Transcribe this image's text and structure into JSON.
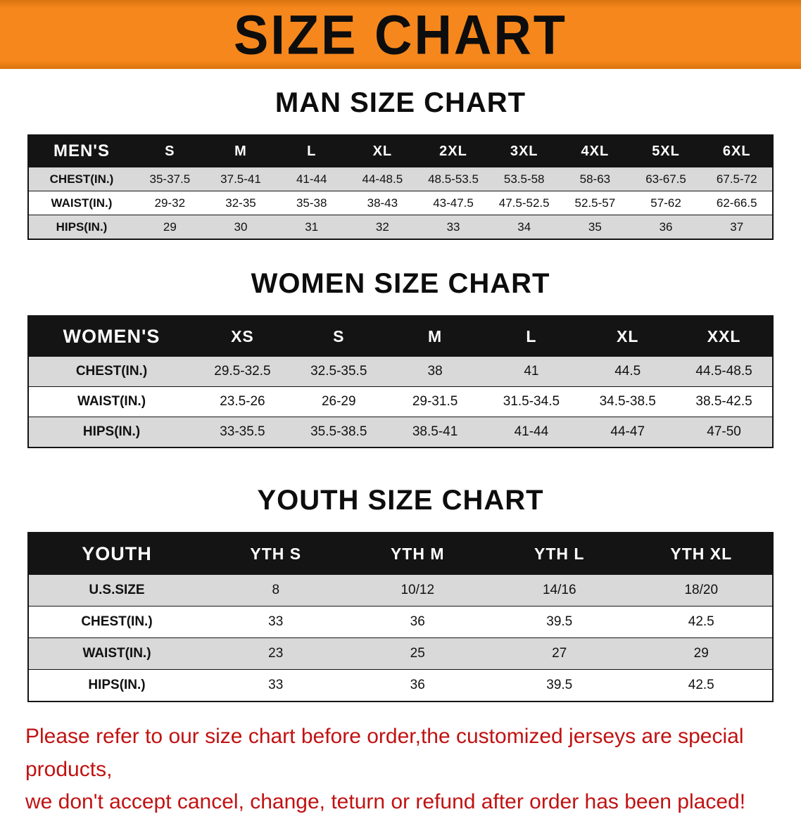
{
  "banner": {
    "title": "SIZE CHART"
  },
  "colors": {
    "banner_orange": "#f6871c",
    "table_header_black": "#141414",
    "row_gray": "#d9d9d9",
    "disclaimer_red": "#c11212"
  },
  "sections": [
    {
      "heading": "MAN SIZE CHART",
      "table": {
        "header": [
          "MEN'S",
          "S",
          "M",
          "L",
          "XL",
          "2XL",
          "3XL",
          "4XL",
          "5XL",
          "6XL"
        ],
        "rows": [
          {
            "label": "CHEST(IN.)",
            "values": [
              "35-37.5",
              "37.5-41",
              "41-44",
              "44-48.5",
              "48.5-53.5",
              "53.5-58",
              "58-63",
              "63-67.5",
              "67.5-72"
            ]
          },
          {
            "label": "WAIST(IN.)",
            "values": [
              "29-32",
              "32-35",
              "35-38",
              "38-43",
              "43-47.5",
              "47.5-52.5",
              "52.5-57",
              "57-62",
              "62-66.5"
            ]
          },
          {
            "label": "HIPS(IN.)",
            "values": [
              "29",
              "30",
              "31",
              "32",
              "33",
              "34",
              "35",
              "36",
              "37"
            ]
          }
        ]
      }
    },
    {
      "heading": "WOMEN SIZE CHART",
      "table": {
        "header": [
          "WOMEN'S",
          "XS",
          "S",
          "M",
          "L",
          "XL",
          "XXL"
        ],
        "rows": [
          {
            "label": "CHEST(IN.)",
            "values": [
              "29.5-32.5",
              "32.5-35.5",
              "38",
              "41",
              "44.5",
              "44.5-48.5"
            ]
          },
          {
            "label": "WAIST(IN.)",
            "values": [
              "23.5-26",
              "26-29",
              "29-31.5",
              "31.5-34.5",
              "34.5-38.5",
              "38.5-42.5"
            ]
          },
          {
            "label": "HIPS(IN.)",
            "values": [
              "33-35.5",
              "35.5-38.5",
              "38.5-41",
              "41-44",
              "44-47",
              "47-50"
            ]
          }
        ]
      }
    },
    {
      "heading": "YOUTH SIZE CHART",
      "table": {
        "header": [
          "YOUTH",
          "YTH S",
          "YTH M",
          "YTH L",
          "YTH XL"
        ],
        "rows": [
          {
            "label": "U.S.SIZE",
            "values": [
              "8",
              "10/12",
              "14/16",
              "18/20"
            ]
          },
          {
            "label": "CHEST(IN.)",
            "values": [
              "33",
              "36",
              "39.5",
              "42.5"
            ]
          },
          {
            "label": "WAIST(IN.)",
            "values": [
              "23",
              "25",
              "27",
              "29"
            ]
          },
          {
            "label": "HIPS(IN.)",
            "values": [
              "33",
              "36",
              "39.5",
              "42.5"
            ]
          }
        ]
      }
    }
  ],
  "footer": {
    "line1": "Please refer to our size chart before order,the customized jerseys are special products,",
    "line2": "we don't accept cancel, change, teturn or refund after order has been placed!"
  }
}
